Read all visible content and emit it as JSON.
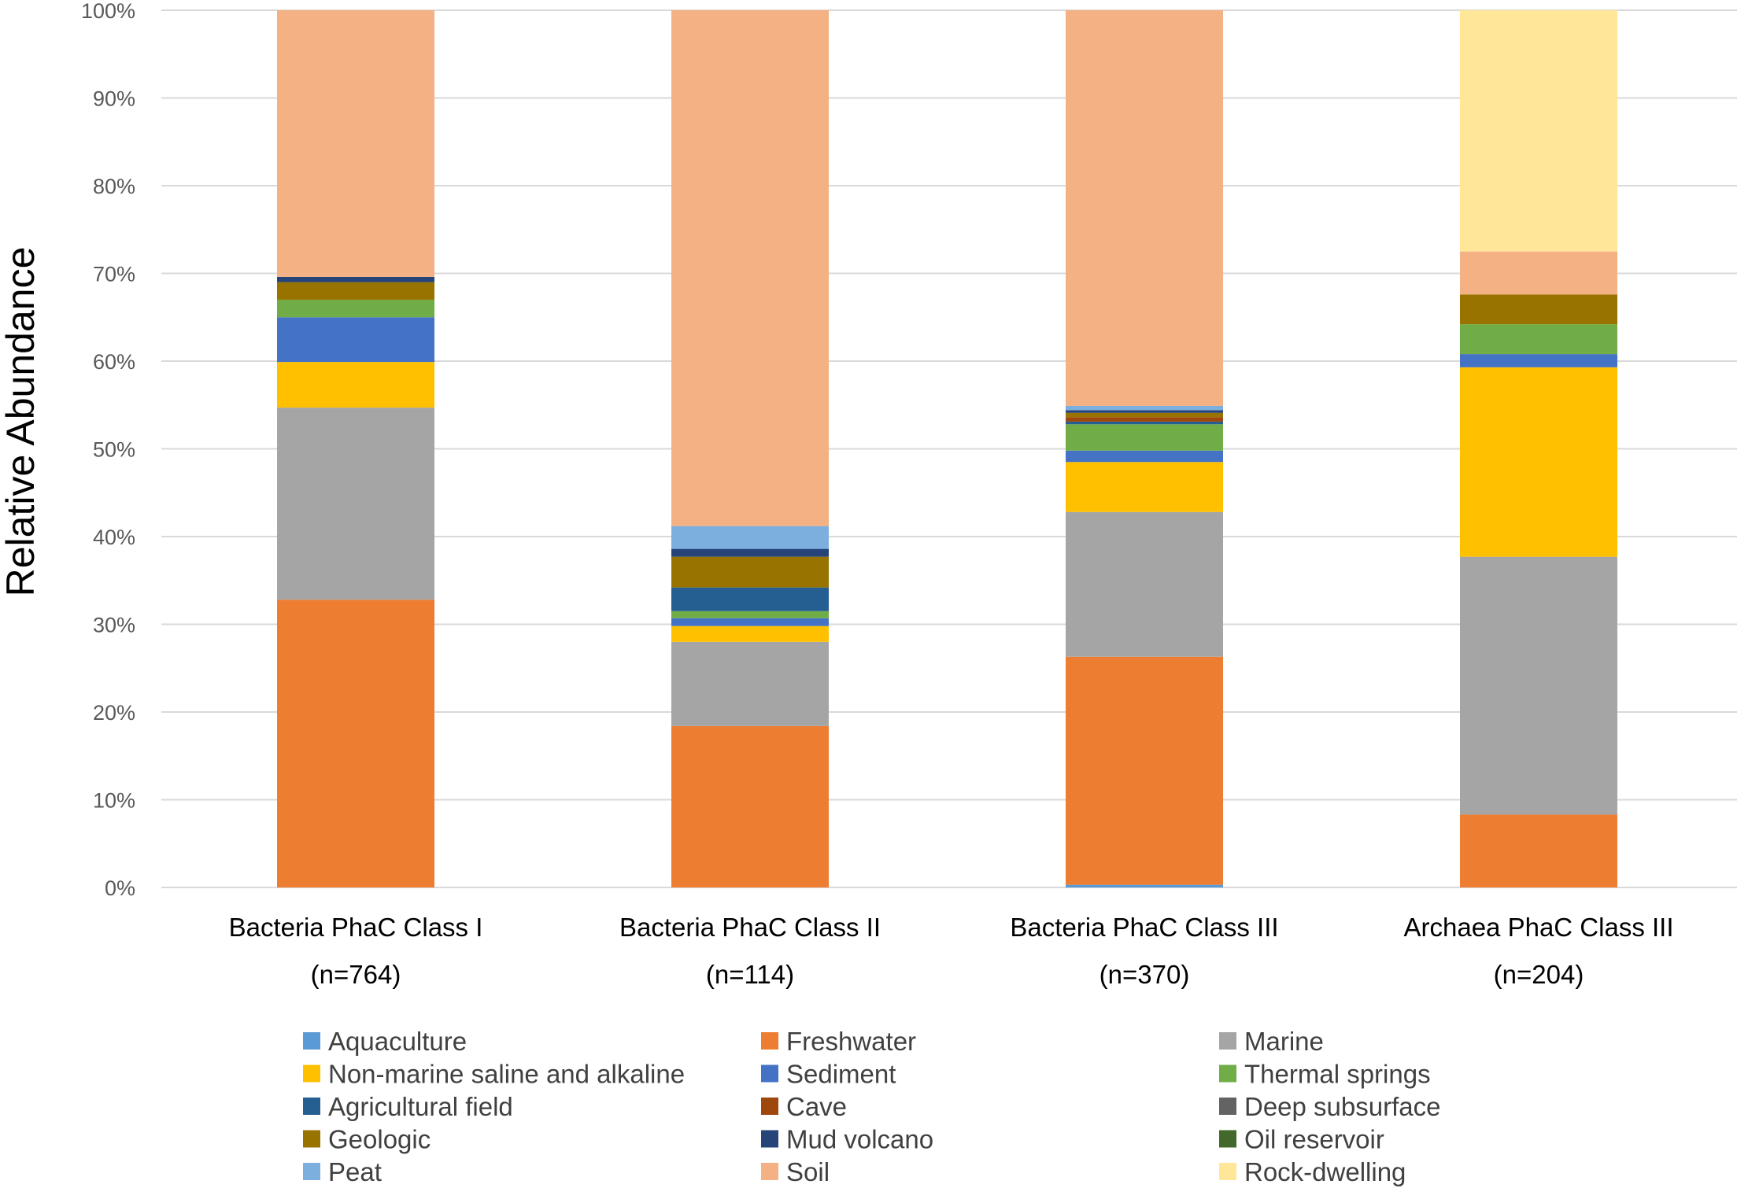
{
  "chart_data": {
    "type": "bar",
    "stacked": true,
    "normalized": true,
    "title": "",
    "xlabel": "",
    "ylabel": "Relative Abundance",
    "ylim": [
      0,
      100
    ],
    "yticks": [
      "0%",
      "10%",
      "20%",
      "30%",
      "40%",
      "50%",
      "60%",
      "70%",
      "80%",
      "90%",
      "100%"
    ],
    "grid": true,
    "legend_position": "bottom",
    "categories": [
      "Bacteria PhaC Class I",
      "Bacteria PhaC Class II",
      "Bacteria PhaC Class III",
      "Archaea PhaC Class III"
    ],
    "category_counts": [
      "(n=764)",
      "(n=114)",
      "(n=370)",
      "(n=204)"
    ],
    "series": [
      {
        "name": "Aquaculture",
        "color": "#5B9BD5",
        "values": [
          0.0,
          0.0,
          0.3,
          0.0
        ]
      },
      {
        "name": "Freshwater",
        "color": "#ED7D31",
        "values": [
          32.8,
          18.4,
          26.0,
          8.3
        ]
      },
      {
        "name": "Marine",
        "color": "#A5A5A5",
        "values": [
          21.9,
          9.6,
          16.5,
          29.4
        ]
      },
      {
        "name": "Non-marine saline and alkaline",
        "color": "#FFC000",
        "values": [
          5.2,
          1.8,
          5.7,
          21.6
        ]
      },
      {
        "name": "Sediment",
        "color": "#4472C4",
        "values": [
          5.1,
          0.9,
          1.3,
          1.5
        ]
      },
      {
        "name": "Thermal springs",
        "color": "#70AD47",
        "values": [
          2.0,
          0.8,
          3.0,
          3.4
        ]
      },
      {
        "name": "Agricultural field",
        "color": "#255E91",
        "values": [
          0.0,
          2.7,
          0.3,
          0.0
        ]
      },
      {
        "name": "Cave",
        "color": "#9E480E",
        "values": [
          0.0,
          0.0,
          0.5,
          0.0
        ]
      },
      {
        "name": "Deep subsurface",
        "color": "#636363",
        "values": [
          0.0,
          0.0,
          0.0,
          0.0
        ]
      },
      {
        "name": "Geologic",
        "color": "#997300",
        "values": [
          2.0,
          3.5,
          0.5,
          3.4
        ]
      },
      {
        "name": "Mud volcano",
        "color": "#264478",
        "values": [
          0.6,
          0.9,
          0.3,
          0.0
        ]
      },
      {
        "name": "Oil reservoir",
        "color": "#43682B",
        "values": [
          0.0,
          0.0,
          0.0,
          0.0
        ]
      },
      {
        "name": "Peat",
        "color": "#7CAFDD",
        "values": [
          0.0,
          2.6,
          0.5,
          0.0
        ]
      },
      {
        "name": "Soil",
        "color": "#F4B183",
        "values": [
          30.4,
          58.8,
          45.1,
          4.9
        ]
      },
      {
        "name": "Rock-dwelling",
        "color": "#FFE699",
        "values": [
          0.0,
          0.0,
          0.0,
          27.5
        ]
      }
    ]
  }
}
